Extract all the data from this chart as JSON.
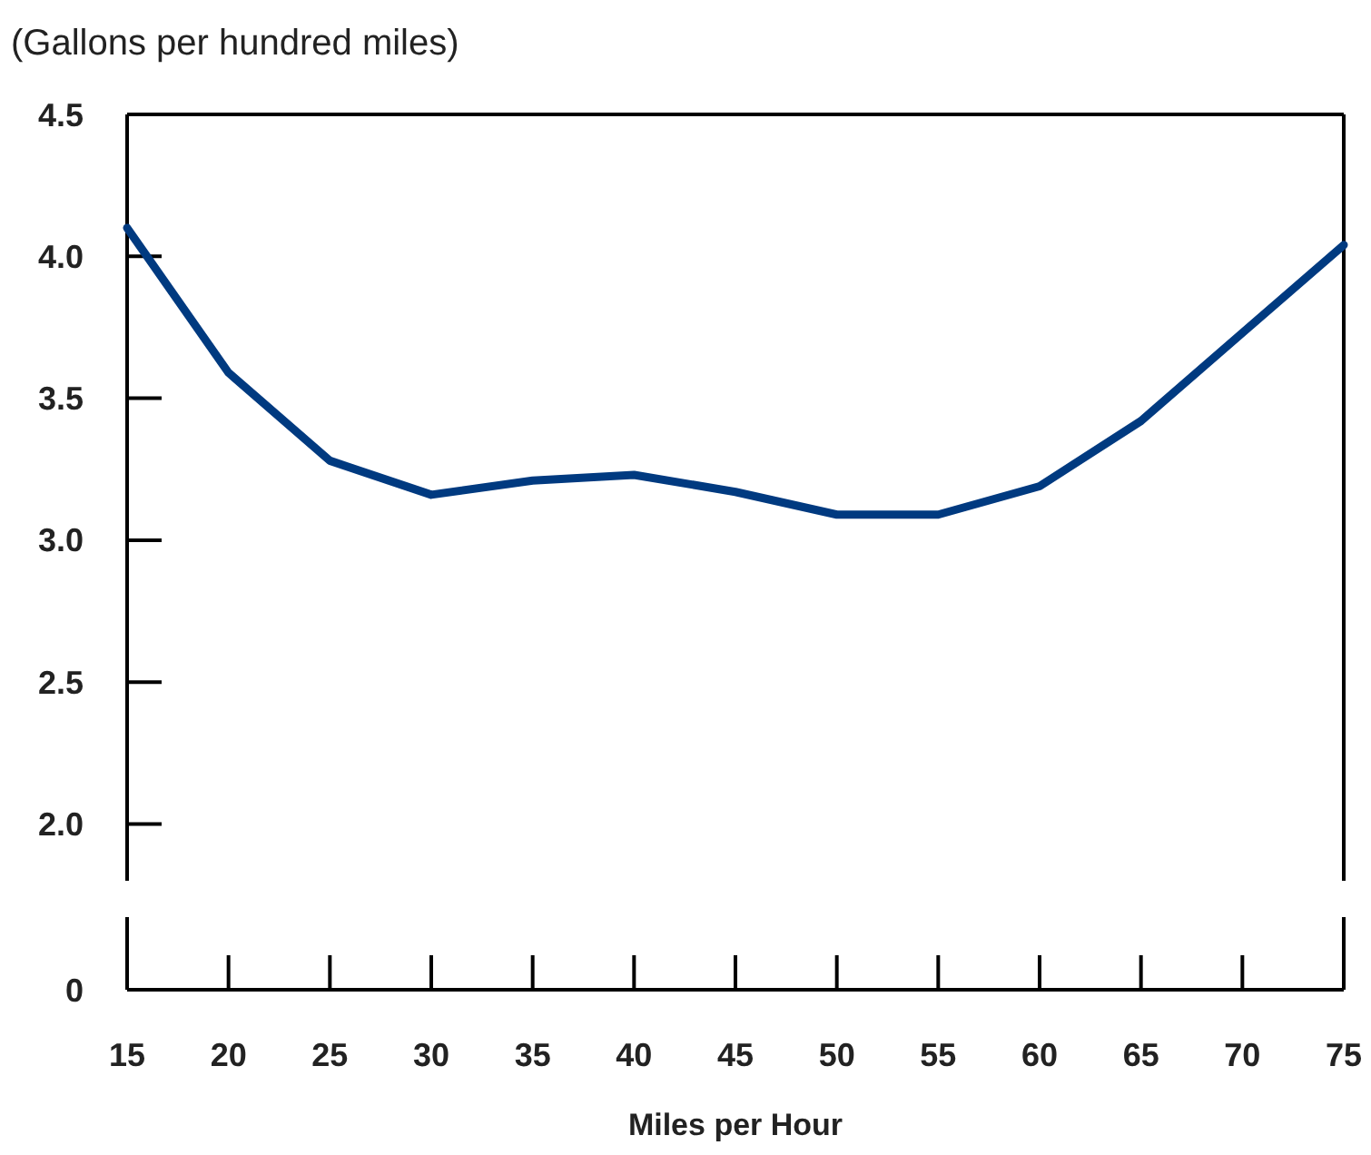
{
  "chart_data": {
    "type": "line",
    "ylabel": "(Gallons per hundred miles)",
    "xlabel": "Miles per Hour",
    "xlim": [
      15,
      75
    ],
    "ylim": [
      1.8,
      4.5
    ],
    "yticks": [
      {
        "value": 2,
        "label": "2.0"
      },
      {
        "value": 2.5,
        "label": "2.5"
      },
      {
        "value": 3,
        "label": "3.0"
      },
      {
        "value": 3.5,
        "label": "3.5"
      },
      {
        "value": 4,
        "label": "4.0"
      },
      {
        "value": 4.5,
        "label": "4.5"
      }
    ],
    "xticks": [
      15,
      20,
      25,
      30,
      35,
      40,
      45,
      50,
      55,
      60,
      65,
      70,
      75
    ],
    "x": [
      15,
      20,
      25,
      30,
      35,
      40,
      45,
      50,
      55,
      60,
      65,
      70,
      75
    ],
    "series": [
      {
        "color": "#003a80",
        "values": [
          4.1,
          3.59,
          3.28,
          3.16,
          3.21,
          3.23,
          3.17,
          3.09,
          3.09,
          3.19,
          3.42,
          3.73,
          4.04
        ]
      }
    ],
    "annotations": [
      "0"
    ],
    "marker": "none",
    "line_style": "solid"
  }
}
